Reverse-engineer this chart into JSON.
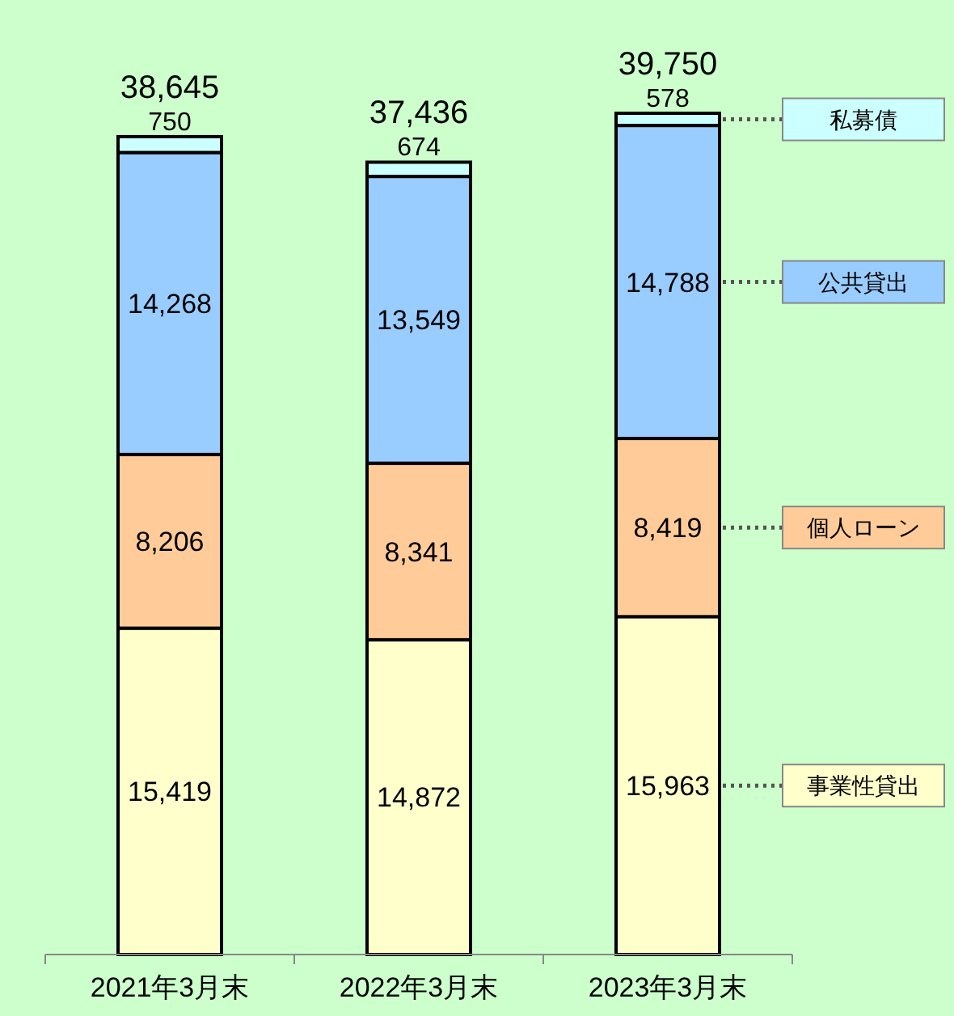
{
  "chart_data": {
    "type": "bar",
    "stacked": true,
    "legend": "right",
    "categories": [
      "2021年3月末",
      "2022年3月末",
      "2023年3月末"
    ],
    "series": [
      {
        "name": "事業性貸出",
        "color": "#ffffcc",
        "values": [
          15419,
          14872,
          15963
        ],
        "value_labels": [
          "15,419",
          "14,872",
          "15,963"
        ]
      },
      {
        "name": "個人ローン",
        "color": "#ffcc99",
        "values": [
          8206,
          8341,
          8419
        ],
        "value_labels": [
          "8,206",
          "8,341",
          "8,419"
        ]
      },
      {
        "name": "公共貸出",
        "color": "#99ccff",
        "values": [
          14268,
          13549,
          14788
        ],
        "value_labels": [
          "14,268",
          "13,549",
          "14,788"
        ]
      },
      {
        "name": "私募債",
        "color": "#ccffff",
        "values": [
          750,
          674,
          578
        ],
        "value_labels": [
          "750",
          "674",
          "578"
        ]
      }
    ],
    "totals": [
      "38,645",
      "37,436",
      "39,750"
    ]
  }
}
